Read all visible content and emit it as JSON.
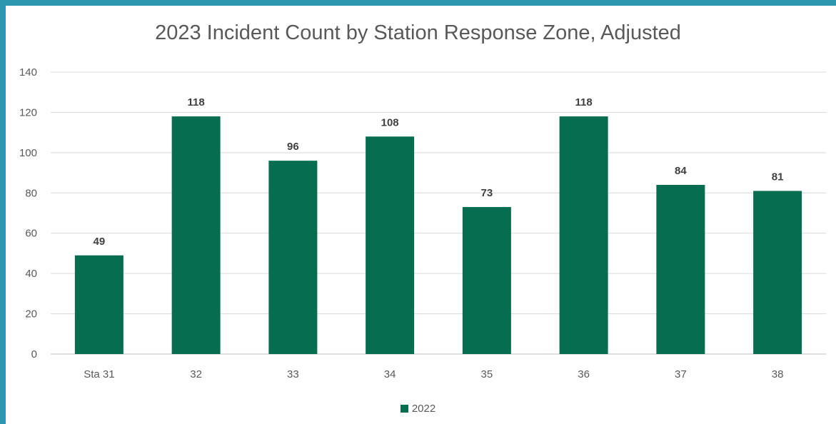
{
  "chart_data": {
    "type": "bar",
    "title": "2023 Incident Count by Station Response Zone, Adjusted",
    "categories": [
      "Sta 31",
      "32",
      "33",
      "34",
      "35",
      "36",
      "37",
      "38"
    ],
    "series": [
      {
        "name": "2022",
        "color": "#076d50",
        "values": [
          49,
          118,
          96,
          108,
          73,
          118,
          84,
          81
        ]
      }
    ],
    "ylim": [
      0,
      140
    ],
    "yticks": [
      "0",
      "20",
      "40",
      "60",
      "80",
      "100",
      "120",
      "140"
    ],
    "grid": true,
    "legend_position": "bottom"
  }
}
